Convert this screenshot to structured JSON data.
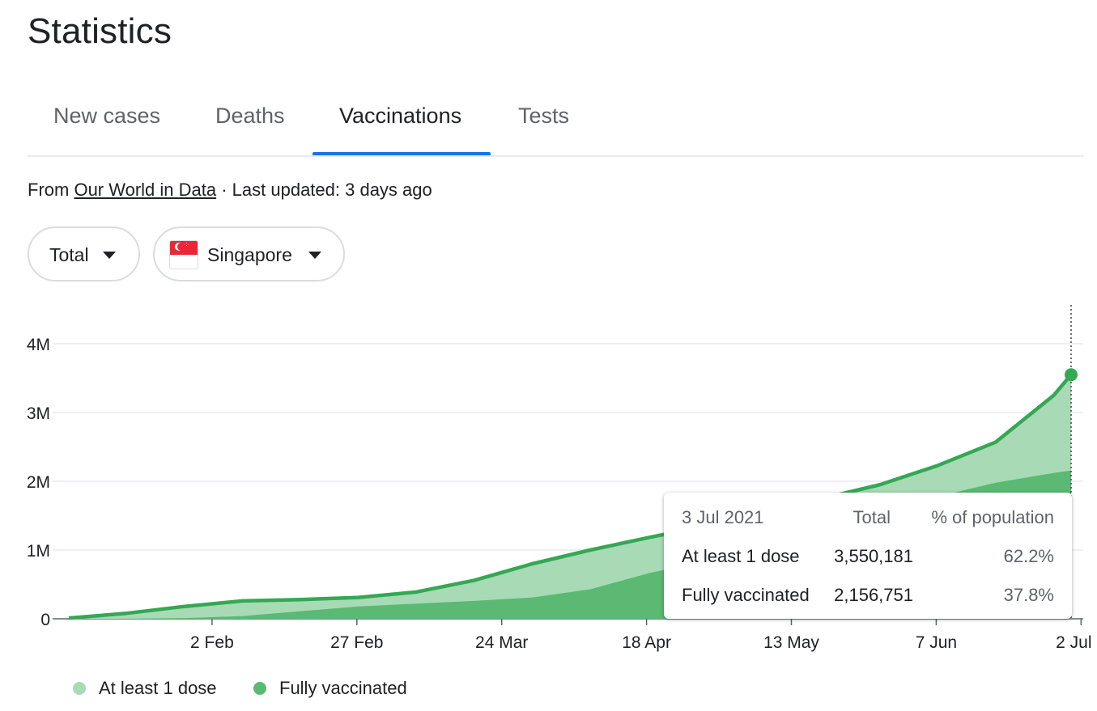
{
  "title": "Statistics",
  "tabs": [
    {
      "label": "New cases"
    },
    {
      "label": "Deaths"
    },
    {
      "label": "Vaccinations"
    },
    {
      "label": "Tests"
    }
  ],
  "active_tab": "Vaccinations",
  "source": {
    "prefix": "From",
    "link": "Our World in Data",
    "updated": "· Last updated: 3 days ago"
  },
  "filters": {
    "metric": "Total",
    "country": "Singapore"
  },
  "colors": {
    "accent": "#1a73e8",
    "dose1_fill": "#a8dab5",
    "full_fill": "#5bb974",
    "line": "#34a853"
  },
  "chart_data": {
    "type": "area",
    "x_tick_labels": [
      "2 Feb",
      "27 Feb",
      "24 Mar",
      "18 Apr",
      "13 May",
      "7 Jun",
      "2 Jul"
    ],
    "y_tick_labels": [
      "0",
      "1M",
      "2M",
      "3M",
      "4M"
    ],
    "ylim": [
      0,
      4000000
    ],
    "x_range_days": [
      0,
      173
    ],
    "series": [
      {
        "name": "At least 1 dose",
        "x_days": [
          0,
          10,
          20,
          30,
          40,
          50,
          60,
          70,
          80,
          90,
          100,
          110,
          120,
          130,
          140,
          150,
          160,
          170,
          173
        ],
        "values": [
          10000,
          80000,
          180000,
          260000,
          280000,
          310000,
          390000,
          560000,
          800000,
          1000000,
          1180000,
          1350000,
          1550000,
          1750000,
          1950000,
          2230000,
          2570000,
          3250000,
          3550181
        ]
      },
      {
        "name": "Fully vaccinated",
        "x_days": [
          0,
          10,
          20,
          30,
          40,
          50,
          60,
          70,
          80,
          90,
          100,
          110,
          120,
          130,
          140,
          150,
          160,
          170,
          173
        ],
        "values": [
          0,
          0,
          10000,
          40000,
          110000,
          180000,
          220000,
          260000,
          310000,
          430000,
          660000,
          850000,
          1020000,
          1250000,
          1500000,
          1780000,
          1980000,
          2120000,
          2156751
        ]
      }
    ],
    "legend": "bottom-left",
    "grid": true,
    "tooltip": {
      "date": "3 Jul 2021",
      "col_total": "Total",
      "col_pct": "% of population",
      "rows": [
        {
          "label": "At least 1 dose",
          "total": "3,550,181",
          "pct": "62.2%"
        },
        {
          "label": "Fully vaccinated",
          "total": "2,156,751",
          "pct": "37.8%"
        }
      ]
    }
  }
}
